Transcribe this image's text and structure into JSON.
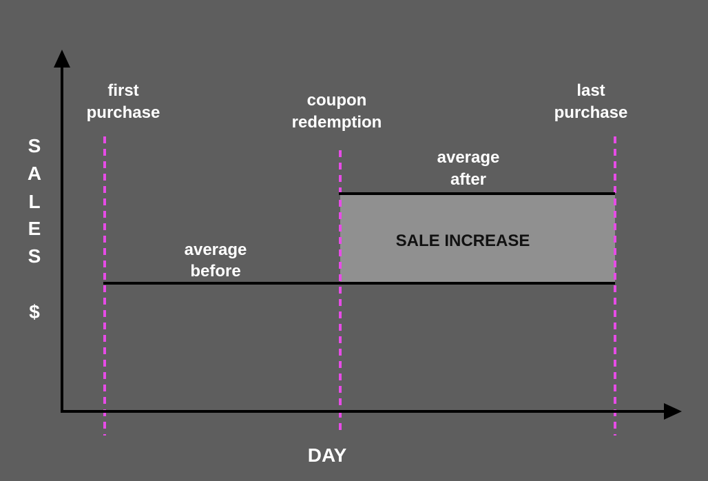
{
  "colors": {
    "background": "#5e5e5e",
    "axis": "#000000",
    "marker_line": "#e64ce6",
    "increase_area": "#909090",
    "label_text": "#ffffff",
    "area_text": "#111111"
  },
  "axes": {
    "y_title_letters": [
      "S",
      "A",
      "L",
      "E",
      "S"
    ],
    "y_unit": "$",
    "x_title": "DAY"
  },
  "markers": {
    "first_purchase": [
      "first",
      "purchase"
    ],
    "coupon_redemption": [
      "coupon",
      "redemption"
    ],
    "last_purchase": [
      "last",
      "purchase"
    ]
  },
  "levels": {
    "average_before": [
      "average",
      "before"
    ],
    "average_after": [
      "average",
      "after"
    ]
  },
  "area_label": "SALE INCREASE"
}
